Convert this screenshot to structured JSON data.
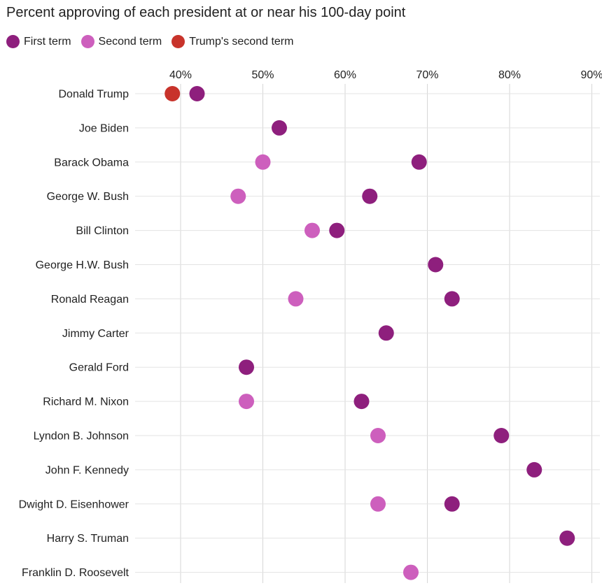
{
  "chart_data": {
    "type": "scatter",
    "title": "Percent approving of each president at or near his 100-day point",
    "xlabel": "",
    "ylabel": "",
    "xlim": [
      35,
      91
    ],
    "xticks": [
      40,
      50,
      60,
      70,
      80,
      90
    ],
    "xtick_labels": [
      "40%",
      "50%",
      "60%",
      "70%",
      "80%",
      "90%"
    ],
    "grid": true,
    "legend_position": "top-left",
    "categories": [
      "Donald Trump",
      "Joe Biden",
      "Barack Obama",
      "George W. Bush",
      "Bill Clinton",
      "George H.W. Bush",
      "Ronald Reagan",
      "Jimmy Carter",
      "Gerald Ford",
      "Richard M. Nixon",
      "Lyndon B. Johnson",
      "John F. Kennedy",
      "Dwight D. Eisenhower",
      "Harry S. Truman",
      "Franklin D. Roosevelt"
    ],
    "series": [
      {
        "name": "First term",
        "color": "#8e1f7d",
        "values": [
          42,
          52,
          69,
          63,
          59,
          71,
          73,
          65,
          48,
          62,
          79,
          83,
          73,
          87,
          null
        ]
      },
      {
        "name": "Second term",
        "color": "#cd5fbd",
        "values": [
          null,
          null,
          50,
          47,
          56,
          null,
          54,
          null,
          null,
          48,
          64,
          null,
          64,
          null,
          68
        ]
      },
      {
        "name": "Trump's second term",
        "color": "#c8332b",
        "values": [
          39,
          null,
          null,
          null,
          null,
          null,
          null,
          null,
          null,
          null,
          null,
          null,
          null,
          null,
          null
        ]
      }
    ]
  }
}
